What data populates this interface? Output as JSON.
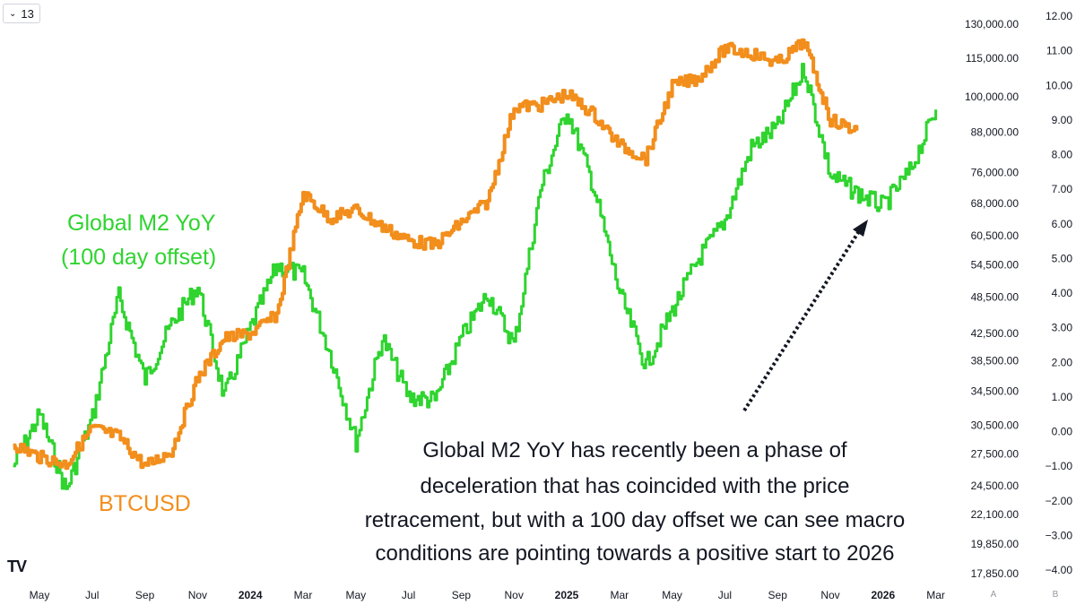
{
  "toolbar": {
    "interval_label": "13"
  },
  "logo_text": "TV",
  "scale_buttons": {
    "auto": "A",
    "log": "B"
  },
  "colors": {
    "m2": "#2fd42f",
    "btc": "#f28e1c",
    "text": "#131722",
    "arrow": "#131722"
  },
  "chart_data": {
    "type": "line",
    "x_tick_labels": [
      {
        "label": "May",
        "bold": false
      },
      {
        "label": "Jul",
        "bold": false
      },
      {
        "label": "Sep",
        "bold": false
      },
      {
        "label": "Nov",
        "bold": false
      },
      {
        "label": "2024",
        "bold": true
      },
      {
        "label": "Mar",
        "bold": false
      },
      {
        "label": "May",
        "bold": false
      },
      {
        "label": "Jul",
        "bold": false
      },
      {
        "label": "Sep",
        "bold": false
      },
      {
        "label": "Nov",
        "bold": false
      },
      {
        "label": "2025",
        "bold": true
      },
      {
        "label": "Mar",
        "bold": false
      },
      {
        "label": "May",
        "bold": false
      },
      {
        "label": "Jul",
        "bold": false
      },
      {
        "label": "Sep",
        "bold": false
      },
      {
        "label": "Nov",
        "bold": false
      },
      {
        "label": "2026",
        "bold": true
      },
      {
        "label": "Mar",
        "bold": false
      }
    ],
    "y_left_scale": "log",
    "y_left_ticks": [
      "130,000.00",
      "115,000.00",
      "100,000.00",
      "88,000.00",
      "76,000.00",
      "68,000.00",
      "60,500.00",
      "54,500.00",
      "48,500.00",
      "42,500.00",
      "38,500.00",
      "34,500.00",
      "30,500.00",
      "27,500.00",
      "24,500.00",
      "22,100.00",
      "19,850.00",
      "17,850.00"
    ],
    "y_left_values": [
      130000,
      115000,
      100000,
      88000,
      76000,
      68000,
      60500,
      54500,
      48500,
      42500,
      38500,
      34500,
      30500,
      27500,
      24500,
      22100,
      19850,
      17850
    ],
    "y_right_ticks": [
      "12.00",
      "11.00",
      "10.00",
      "9.00",
      "8.00",
      "7.00",
      "6.00",
      "5.00",
      "4.00",
      "3.00",
      "2.00",
      "1.00",
      "0.00",
      "−1.00",
      "−2.00",
      "−3.00",
      "−4.00"
    ],
    "y_right_values": [
      12,
      11,
      10,
      9,
      8,
      7,
      6,
      5,
      4,
      3,
      2,
      1,
      0,
      -1,
      -2,
      -3,
      -4
    ],
    "series": [
      {
        "name": "BTCUSD",
        "axis": "left",
        "x": [
          "2023-04",
          "2023-05",
          "2023-06",
          "2023-07",
          "2023-08",
          "2023-09",
          "2023-10",
          "2023-11",
          "2023-12",
          "2024-01",
          "2024-02",
          "2024-03",
          "2024-04",
          "2024-05",
          "2024-06",
          "2024-07",
          "2024-08",
          "2024-09",
          "2024-10",
          "2024-11",
          "2024-12",
          "2025-01",
          "2025-02",
          "2025-03",
          "2025-04",
          "2025-05",
          "2025-06",
          "2025-07",
          "2025-08",
          "2025-09",
          "2025-10",
          "2025-11",
          "2025-12"
        ],
        "values": [
          28500,
          27200,
          26500,
          30200,
          29300,
          26300,
          27800,
          36200,
          41800,
          42500,
          45500,
          70500,
          64500,
          66500,
          62500,
          59500,
          58500,
          63500,
          68500,
          96500,
          97000,
          101000,
          94000,
          84000,
          80000,
          104000,
          107000,
          119000,
          117000,
          113000,
          122000,
          92000,
          88500
        ]
      },
      {
        "name": "Global M2 YoY (100 day offset)",
        "axis": "right",
        "x": [
          "2023-04",
          "2023-05",
          "2023-06",
          "2023-07",
          "2023-08",
          "2023-09",
          "2023-10",
          "2023-11",
          "2023-12",
          "2024-01",
          "2024-02",
          "2024-03",
          "2024-04",
          "2024-05",
          "2024-06",
          "2024-07",
          "2024-08",
          "2024-09",
          "2024-10",
          "2024-11",
          "2024-12",
          "2025-01",
          "2025-02",
          "2025-03",
          "2025-04",
          "2025-05",
          "2025-06",
          "2025-07",
          "2025-08",
          "2025-09",
          "2025-10",
          "2025-11",
          "2025-12",
          "2026-01",
          "2026-02",
          "2026-03"
        ],
        "values": [
          -1.0,
          0.5,
          -1.7,
          0.4,
          3.9,
          1.5,
          3.1,
          4.2,
          1.0,
          3.0,
          4.8,
          4.5,
          2.3,
          -0.3,
          2.7,
          1.0,
          0.9,
          2.7,
          4.0,
          2.5,
          7.0,
          9.3,
          7.1,
          4.0,
          1.9,
          3.5,
          5.0,
          6.1,
          8.2,
          8.8,
          10.5,
          7.4,
          6.9,
          6.5,
          7.5,
          9.3
        ]
      }
    ],
    "labels": {
      "m2": [
        "Global M2 YoY",
        "(100 day offset)"
      ],
      "btc": "BTCUSD"
    },
    "annotation": [
      "Global M2 YoY has recently been a phase of",
      "deceleration that has coincided with the price",
      "retracement, but with a 100 day offset we can see macro",
      "conditions are pointing towards a positive start to 2026"
    ]
  }
}
